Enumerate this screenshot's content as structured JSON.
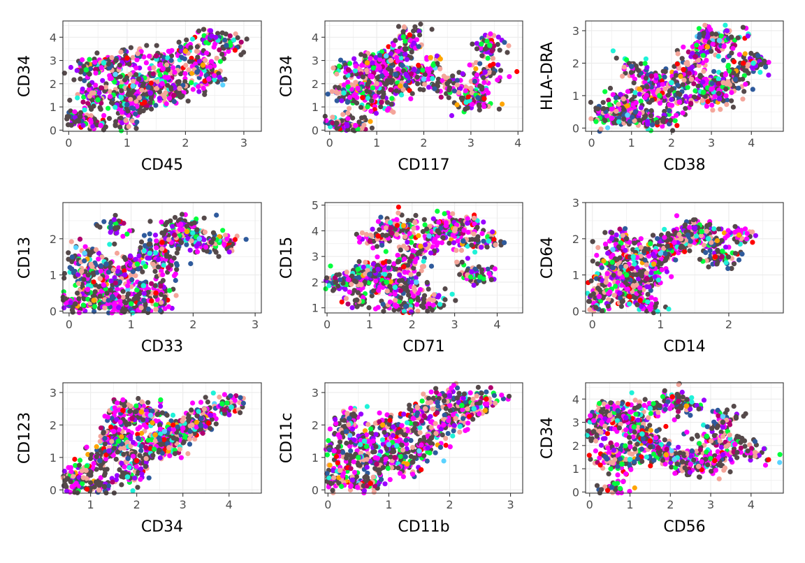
{
  "chart_data": [
    {
      "type": "scatter",
      "xlabel": "CD45",
      "ylabel": "CD34",
      "xlim": [
        -0.1,
        3.3
      ],
      "ylim": [
        -0.05,
        4.7
      ],
      "xticks": [
        "0",
        "1",
        "2",
        "3"
      ],
      "yticks": [
        "0",
        "1",
        "2",
        "3",
        "4"
      ],
      "grid": true,
      "points": [
        [
          0.15,
          0.4
        ],
        [
          0.55,
          0.2
        ],
        [
          0.98,
          0.42
        ],
        [
          2.7,
          3.65
        ],
        [
          2.45,
          4.05
        ],
        [
          0.3,
          2.6
        ],
        [
          0.6,
          2.9
        ],
        [
          1.0,
          3.1
        ],
        [
          1.5,
          3.2
        ],
        [
          2.0,
          3.4
        ],
        [
          0.8,
          2.4
        ],
        [
          1.2,
          2.2
        ],
        [
          1.6,
          2.0
        ],
        [
          1.9,
          1.8
        ],
        [
          2.2,
          2.5
        ],
        [
          1.4,
          1.6
        ],
        [
          0.5,
          1.3
        ],
        [
          0.9,
          1.4
        ],
        [
          1.3,
          1.2
        ],
        [
          1.8,
          1.5
        ],
        [
          2.3,
          2.8
        ],
        [
          1.1,
          1.9
        ],
        [
          1.7,
          2.6
        ],
        [
          2.4,
          2.2
        ],
        [
          0.4,
          1.6
        ],
        [
          1.0,
          1.1
        ]
      ]
    },
    {
      "type": "scatter",
      "xlabel": "CD117",
      "ylabel": "CD34",
      "xlim": [
        -0.1,
        4.1
      ],
      "ylim": [
        -0.05,
        4.7
      ],
      "xticks": [
        "0",
        "1",
        "2",
        "3",
        "4"
      ],
      "yticks": [
        "0",
        "1",
        "2",
        "3",
        "4"
      ],
      "grid": true,
      "points": [
        [
          0.15,
          0.3
        ],
        [
          0.55,
          0.2
        ],
        [
          3.0,
          1.8
        ],
        [
          3.15,
          1.4
        ],
        [
          3.3,
          2.5
        ],
        [
          3.4,
          3.65
        ],
        [
          2.9,
          1.2
        ],
        [
          1.7,
          4.1
        ],
        [
          0.4,
          2.6
        ],
        [
          0.8,
          2.9
        ],
        [
          1.2,
          3.2
        ],
        [
          1.6,
          3.5
        ],
        [
          0.6,
          1.8
        ],
        [
          1.0,
          2.0
        ],
        [
          1.4,
          2.4
        ],
        [
          1.8,
          2.6
        ],
        [
          2.2,
          2.8
        ],
        [
          0.3,
          1.6
        ],
        [
          0.7,
          1.4
        ],
        [
          1.1,
          1.2
        ],
        [
          1.5,
          1.9
        ],
        [
          2.0,
          2.2
        ],
        [
          2.5,
          2.0
        ],
        [
          0.9,
          2.3
        ],
        [
          1.3,
          3.0
        ]
      ]
    },
    {
      "type": "scatter",
      "xlabel": "CD38",
      "ylabel": "HLA-DRA",
      "xlim": [
        -0.15,
        4.8
      ],
      "ylim": [
        -0.1,
        3.3
      ],
      "xticks": [
        "0",
        "1",
        "2",
        "3",
        "4"
      ],
      "yticks": [
        "0",
        "1",
        "2",
        "3"
      ],
      "grid": true,
      "points": [
        [
          0.3,
          0.6
        ],
        [
          0.5,
          0.3
        ],
        [
          0.8,
          0.9
        ],
        [
          1.1,
          0.5
        ],
        [
          1.4,
          0.2
        ],
        [
          1.7,
          1.0
        ],
        [
          2.0,
          1.4
        ],
        [
          2.3,
          1.8
        ],
        [
          2.6,
          2.2
        ],
        [
          2.9,
          2.5
        ],
        [
          3.2,
          2.7
        ],
        [
          3.5,
          2.8
        ],
        [
          3.0,
          1.2
        ],
        [
          3.3,
          1.4
        ],
        [
          3.6,
          1.5
        ],
        [
          3.2,
          0.9
        ],
        [
          2.8,
          1.1
        ],
        [
          4.05,
          2.0
        ],
        [
          3.8,
          2.0
        ],
        [
          1.5,
          1.6
        ],
        [
          1.2,
          1.2
        ],
        [
          0.9,
          0.4
        ],
        [
          1.8,
          0.3
        ],
        [
          2.2,
          0.8
        ],
        [
          2.5,
          1.5
        ],
        [
          1.0,
          1.9
        ],
        [
          2.9,
          2.8
        ]
      ]
    },
    {
      "type": "scatter",
      "xlabel": "CD33",
      "ylabel": "CD13",
      "xlim": [
        -0.1,
        3.1
      ],
      "ylim": [
        -0.05,
        3.0
      ],
      "xticks": [
        "0",
        "1",
        "2",
        "3"
      ],
      "yticks": [
        "0",
        "1",
        "2"
      ],
      "grid": true,
      "points": [
        [
          0.1,
          0.2
        ],
        [
          0.3,
          0.6
        ],
        [
          0.5,
          0.9
        ],
        [
          0.7,
          0.4
        ],
        [
          0.9,
          1.0
        ],
        [
          1.1,
          1.3
        ],
        [
          1.3,
          1.6
        ],
        [
          1.5,
          1.9
        ],
        [
          1.7,
          2.1
        ],
        [
          1.9,
          2.2
        ],
        [
          2.1,
          2.0
        ],
        [
          2.3,
          1.9
        ],
        [
          2.5,
          1.85
        ],
        [
          0.2,
          1.1
        ],
        [
          0.6,
          1.3
        ],
        [
          0.8,
          0.1
        ],
        [
          1.0,
          0.2
        ],
        [
          1.2,
          0.7
        ],
        [
          1.4,
          0.5
        ],
        [
          1.6,
          1.2
        ],
        [
          0.4,
          0.3
        ],
        [
          0.25,
          1.6
        ],
        [
          0.75,
          2.3
        ],
        [
          1.8,
          2.4
        ],
        [
          1.4,
          0.05
        ]
      ]
    },
    {
      "type": "scatter",
      "xlabel": "CD71",
      "ylabel": "CD15",
      "xlim": [
        -0.05,
        4.6
      ],
      "ylim": [
        0.8,
        5.1
      ],
      "xticks": [
        "0",
        "1",
        "2",
        "3",
        "4"
      ],
      "yticks": [
        "1",
        "2",
        "3",
        "4",
        "5"
      ],
      "grid": true,
      "points": [
        [
          0.2,
          2.0
        ],
        [
          0.5,
          2.1
        ],
        [
          0.8,
          1.9
        ],
        [
          1.0,
          2.3
        ],
        [
          1.2,
          2.5
        ],
        [
          1.4,
          2.0
        ],
        [
          1.6,
          1.8
        ],
        [
          1.8,
          2.6
        ],
        [
          2.0,
          3.0
        ],
        [
          2.2,
          3.4
        ],
        [
          2.4,
          3.8
        ],
        [
          2.6,
          4.0
        ],
        [
          2.8,
          4.2
        ],
        [
          3.0,
          4.0
        ],
        [
          3.2,
          3.6
        ],
        [
          3.4,
          2.4
        ],
        [
          3.6,
          2.2
        ],
        [
          3.8,
          3.6
        ],
        [
          1.2,
          3.8
        ],
        [
          1.5,
          4.1
        ],
        [
          1.8,
          4.2
        ],
        [
          2.1,
          2.0
        ],
        [
          0.7,
          1.3
        ],
        [
          1.6,
          1.1
        ],
        [
          2.5,
          1.3
        ],
        [
          1.85,
          1.05
        ],
        [
          3.3,
          4.3
        ]
      ]
    },
    {
      "type": "scatter",
      "xlabel": "CD14",
      "ylabel": "CD64",
      "xlim": [
        -0.1,
        2.8
      ],
      "ylim": [
        -0.05,
        3.0
      ],
      "xticks": [
        "0",
        "1",
        "2"
      ],
      "yticks": [
        "0",
        "1",
        "2",
        "3"
      ],
      "grid": true,
      "points": [
        [
          0.05,
          0.1
        ],
        [
          0.1,
          0.4
        ],
        [
          0.2,
          0.8
        ],
        [
          0.3,
          1.2
        ],
        [
          0.4,
          0.5
        ],
        [
          0.5,
          1.0
        ],
        [
          0.6,
          1.5
        ],
        [
          0.7,
          0.3
        ],
        [
          0.8,
          0.9
        ],
        [
          0.9,
          1.3
        ],
        [
          1.0,
          1.6
        ],
        [
          1.1,
          1.8
        ],
        [
          1.2,
          1.9
        ],
        [
          1.3,
          2.0
        ],
        [
          1.4,
          2.1
        ],
        [
          1.5,
          2.3
        ],
        [
          1.6,
          2.2
        ],
        [
          1.7,
          2.0
        ],
        [
          1.8,
          1.5
        ],
        [
          1.9,
          1.5
        ],
        [
          2.15,
          2.1
        ],
        [
          0.3,
          1.7
        ],
        [
          0.5,
          2.0
        ],
        [
          0.85,
          0.05
        ],
        [
          0.6,
          0.7
        ]
      ]
    },
    {
      "type": "scatter",
      "xlabel": "CD34",
      "ylabel": "CD123",
      "xlim": [
        0.4,
        4.7
      ],
      "ylim": [
        -0.1,
        3.3
      ],
      "xticks": [
        "1",
        "2",
        "3",
        "4"
      ],
      "yticks": [
        "0",
        "1",
        "2",
        "3"
      ],
      "grid": true,
      "points": [
        [
          0.5,
          0.35
        ],
        [
          0.6,
          0.1
        ],
        [
          0.9,
          0.6
        ],
        [
          1.2,
          0.9
        ],
        [
          1.4,
          1.2
        ],
        [
          1.6,
          1.5
        ],
        [
          1.8,
          0.4
        ],
        [
          2.0,
          0.9
        ],
        [
          2.2,
          1.3
        ],
        [
          2.4,
          1.7
        ],
        [
          2.6,
          1.8
        ],
        [
          2.8,
          1.6
        ],
        [
          3.0,
          1.9
        ],
        [
          3.2,
          2.0
        ],
        [
          3.4,
          2.2
        ],
        [
          3.6,
          2.3
        ],
        [
          3.85,
          2.65
        ],
        [
          4.05,
          2.55
        ],
        [
          1.7,
          2.45
        ],
        [
          1.9,
          2.2
        ],
        [
          2.1,
          2.4
        ],
        [
          2.3,
          2.3
        ],
        [
          1.3,
          0.1
        ],
        [
          1.5,
          1.8
        ],
        [
          2.7,
          1.3
        ]
      ]
    },
    {
      "type": "scatter",
      "xlabel": "CD11b",
      "ylabel": "CD11c",
      "xlim": [
        -0.05,
        3.2
      ],
      "ylim": [
        -0.1,
        3.3
      ],
      "xticks": [
        "0",
        "1",
        "2",
        "3"
      ],
      "yticks": [
        "0",
        "1",
        "2",
        "3"
      ],
      "grid": true,
      "points": [
        [
          0.05,
          0.2
        ],
        [
          0.1,
          1.2
        ],
        [
          0.2,
          0.6
        ],
        [
          0.3,
          1.8
        ],
        [
          0.4,
          0.3
        ],
        [
          0.5,
          1.0
        ],
        [
          0.6,
          1.5
        ],
        [
          0.7,
          0.2
        ],
        [
          0.8,
          0.8
        ],
        [
          0.9,
          2.0
        ],
        [
          1.0,
          1.4
        ],
        [
          1.2,
          1.8
        ],
        [
          1.4,
          2.2
        ],
        [
          1.6,
          2.5
        ],
        [
          1.8,
          2.7
        ],
        [
          2.0,
          2.9
        ],
        [
          2.2,
          2.6
        ],
        [
          2.4,
          2.5
        ],
        [
          2.6,
          2.8
        ],
        [
          1.1,
          1.0
        ],
        [
          1.3,
          0.8
        ],
        [
          1.5,
          1.2
        ],
        [
          1.7,
          1.6
        ],
        [
          1.9,
          2.0
        ],
        [
          2.1,
          2.2
        ],
        [
          0.35,
          2.2
        ]
      ]
    },
    {
      "type": "scatter",
      "xlabel": "CD56",
      "ylabel": "CD34",
      "xlim": [
        -0.1,
        4.8
      ],
      "ylim": [
        -0.05,
        4.7
      ],
      "xticks": [
        "0",
        "1",
        "2",
        "3",
        "4"
      ],
      "yticks": [
        "0",
        "1",
        "2",
        "3",
        "4"
      ],
      "grid": true,
      "points": [
        [
          0.1,
          2.6
        ],
        [
          0.3,
          3.0
        ],
        [
          0.5,
          3.3
        ],
        [
          0.7,
          3.5
        ],
        [
          0.9,
          3.2
        ],
        [
          1.1,
          2.8
        ],
        [
          1.3,
          2.5
        ],
        [
          1.5,
          2.2
        ],
        [
          1.7,
          1.9
        ],
        [
          1.9,
          1.6
        ],
        [
          2.1,
          1.4
        ],
        [
          2.3,
          1.3
        ],
        [
          2.5,
          1.2
        ],
        [
          2.7,
          1.1
        ],
        [
          0.4,
          1.5
        ],
        [
          0.6,
          1.8
        ],
        [
          0.8,
          1.2
        ],
        [
          1.0,
          1.4
        ],
        [
          2.05,
          4.1
        ],
        [
          2.2,
          3.9
        ],
        [
          2.4,
          3.7
        ],
        [
          3.3,
          3.25
        ],
        [
          3.3,
          3.0
        ],
        [
          3.6,
          2.05
        ],
        [
          4.1,
          1.7
        ],
        [
          0.55,
          0.2
        ],
        [
          3.3,
          1.6
        ],
        [
          2.9,
          2.4
        ],
        [
          1.5,
          3.6
        ],
        [
          3.1,
          1.35
        ]
      ]
    }
  ],
  "colors": [
    "#55494a",
    "#ff00ff",
    "#f4a59a",
    "#2e5a9c",
    "#9a00ff",
    "#00ff3c",
    "#1ff2d8",
    "#ff0000",
    "#b0006e",
    "#ffa500",
    "#5bd3ff"
  ]
}
